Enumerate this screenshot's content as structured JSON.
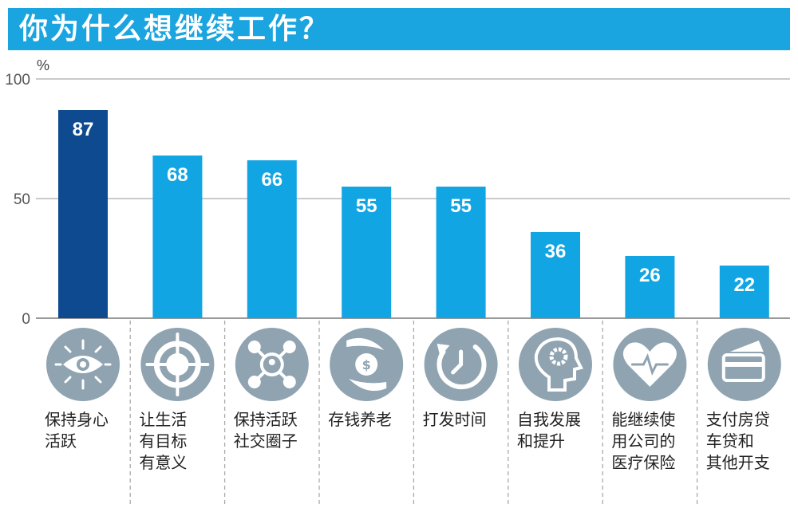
{
  "chart_data": {
    "type": "bar",
    "title": "你为什么想继续工作？",
    "ylabel": "%",
    "ylim": [
      0,
      100
    ],
    "yticks": [
      0,
      50,
      100
    ],
    "grid": true,
    "categories": [
      "保持身心\n活跃",
      "让生活\n有目标\n有意义",
      "保持活跃\n社交圈子",
      "存钱养老",
      "打发时间",
      "自我发展\n和提升",
      "能继续使\n用公司的\n医疗保险",
      "支付房贷\n车贷和\n其他开支"
    ],
    "values": [
      87,
      68,
      66,
      55,
      55,
      36,
      26,
      22
    ],
    "icons": [
      "eye-icon",
      "target-icon",
      "network-icon",
      "money-hands-icon",
      "clock-icon",
      "head-gear-icon",
      "heartbeat-icon",
      "credit-card-icon"
    ],
    "colors": {
      "highlight": "#0d4a8f",
      "bar": "#12a5e3",
      "title_bg": "#1aa5e0",
      "icon": "#8fa3b1"
    }
  }
}
